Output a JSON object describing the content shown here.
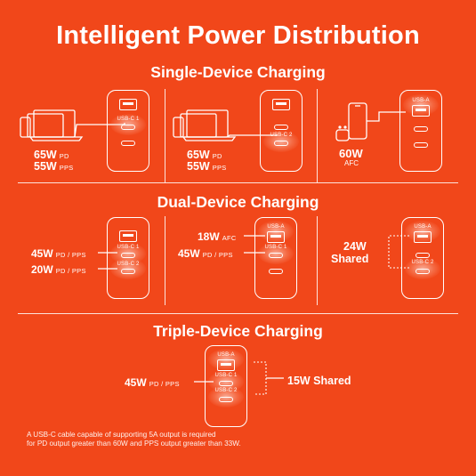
{
  "title": "Intelligent Power Distribution",
  "sections": {
    "single": "Single-Device Charging",
    "dual": "Dual-Device Charging",
    "triple": "Triple-Device Charging"
  },
  "ports": {
    "usba": "USB-A",
    "usbc1": "USB-C 1",
    "usbc2": "USB-C 2"
  },
  "single": {
    "p1": {
      "line1_w": "65W",
      "line1_u": "PD",
      "line2_w": "55W",
      "line2_u": "PPS"
    },
    "p2": {
      "line1_w": "65W",
      "line1_u": "PD",
      "line2_w": "55W",
      "line2_u": "PPS"
    },
    "p3": {
      "w": "60W",
      "u": "AFC"
    }
  },
  "dual": {
    "p1": {
      "a_w": "45W",
      "a_u": "PD / PPS",
      "b_w": "20W",
      "b_u": "PD / PPS"
    },
    "p2": {
      "a_w": "18W",
      "a_u": "AFC",
      "b_w": "45W",
      "b_u": "PD / PPS"
    },
    "p3": {
      "w": "24W",
      "u": "Shared"
    }
  },
  "triple": {
    "a_w": "45W",
    "a_u": "PD / PPS",
    "shared": "15W Shared"
  },
  "note": {
    "line1": "A USB-C cable capable of supporting 5A output is required",
    "line2": "for PD output greater than 60W and PPS output greater than 33W."
  },
  "colors": {
    "background": "#f1471a",
    "foreground": "#ffffff"
  }
}
